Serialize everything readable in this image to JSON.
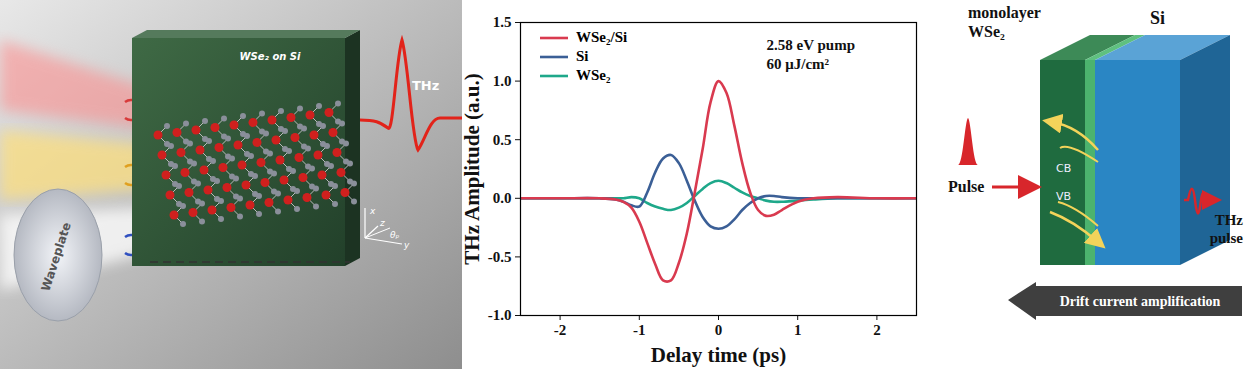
{
  "chart_data": {
    "type": "line",
    "xlabel": "Delay time (ps)",
    "ylabel": "THz Amplitude (a.u.)",
    "annotations": [
      "2.58 eV pump",
      "60 μJ/cm²"
    ],
    "x": [
      -2.5,
      -2,
      -1.5,
      -1.3,
      -1.2,
      -1.1,
      -1.0,
      -0.9,
      -0.8,
      -0.7,
      -0.6,
      -0.5,
      -0.4,
      -0.3,
      -0.2,
      -0.1,
      0,
      0.1,
      0.2,
      0.3,
      0.4,
      0.5,
      0.6,
      0.7,
      0.8,
      1.0,
      1.2,
      1.5,
      2,
      2.5
    ],
    "series": [
      {
        "name": "WSe₂/Si",
        "color": "#d93a4f",
        "values": [
          0,
          0,
          0,
          -0.01,
          -0.03,
          -0.08,
          -0.2,
          -0.38,
          -0.56,
          -0.7,
          -0.7,
          -0.55,
          -0.3,
          0.05,
          0.42,
          0.82,
          1.0,
          0.9,
          0.62,
          0.3,
          0.05,
          -0.1,
          -0.15,
          -0.14,
          -0.1,
          -0.03,
          0,
          0.01,
          0,
          0
        ]
      },
      {
        "name": "Si",
        "color": "#3b5f96",
        "values": [
          0,
          0,
          0,
          -0.01,
          -0.03,
          -0.06,
          -0.07,
          0.05,
          0.22,
          0.34,
          0.37,
          0.3,
          0.15,
          -0.02,
          -0.16,
          -0.24,
          -0.26,
          -0.24,
          -0.18,
          -0.1,
          -0.04,
          0,
          0.02,
          0.02,
          0.01,
          0,
          0,
          0,
          0,
          0
        ]
      },
      {
        "name": "WSe₂",
        "color": "#1ea88a",
        "values": [
          0,
          0,
          0,
          0,
          0,
          0.01,
          0,
          -0.04,
          -0.07,
          -0.09,
          -0.1,
          -0.08,
          -0.04,
          0.02,
          0.08,
          0.13,
          0.15,
          0.13,
          0.09,
          0.05,
          0.02,
          0,
          -0.02,
          -0.03,
          -0.03,
          -0.02,
          -0.01,
          0,
          0,
          0
        ]
      }
    ],
    "xlim": [
      -2.5,
      2.5
    ],
    "ylim": [
      -1.0,
      1.5
    ],
    "xticks": [
      -2,
      -1,
      0,
      1,
      2
    ],
    "yticks": [
      {
        "value": -1.0,
        "label": "-1.0"
      },
      {
        "value": -0.5,
        "label": "-0.5"
      },
      {
        "value": 0,
        "label": "0.0"
      },
      {
        "value": 0.5,
        "label": "0.5"
      },
      {
        "value": 1.0,
        "label": "1.0"
      },
      {
        "value": 1.5,
        "label": "1.5"
      }
    ],
    "legend": "upper left"
  },
  "illustration": {
    "sample_label": "WSe₂ on Si",
    "output_label": "THz",
    "optic_label": "Waveplate",
    "axis_labels": {
      "x": "x",
      "y": "y",
      "z": "z",
      "angle": "θₚ"
    }
  },
  "diagram": {
    "top_layer_label": [
      "monolayer",
      "WSe₂"
    ],
    "substrate_label": "Si",
    "conduction_band": "CB",
    "valence_band": "VB",
    "input_label": "Pulse",
    "output_label": [
      "THz",
      "pulse"
    ],
    "arrow_label": "Drift current amplification"
  }
}
